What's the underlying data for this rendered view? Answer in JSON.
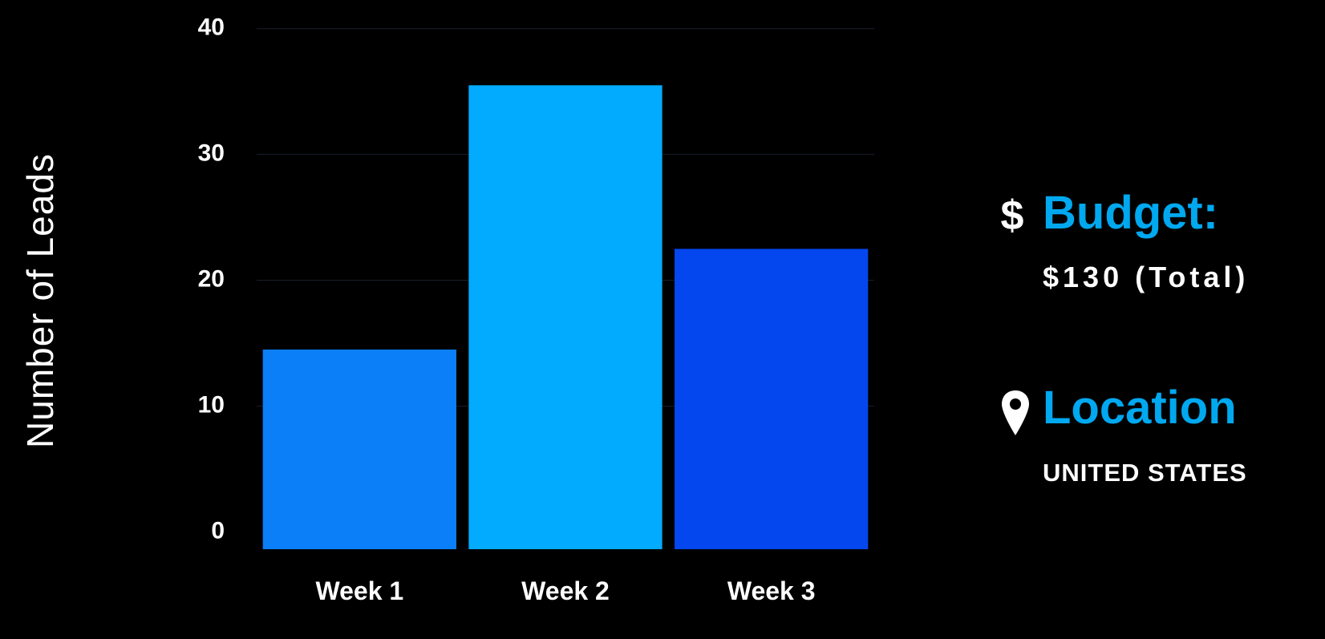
{
  "colors": {
    "background": "#000000",
    "accent": "#00a8f0",
    "text": "#ffffff",
    "grid": "#1a1f2e"
  },
  "chart_data": {
    "type": "bar",
    "categories": [
      "Week 1",
      "Week 2",
      "Week 3"
    ],
    "values": [
      14.5,
      35.5,
      22.5
    ],
    "bar_colors": [
      "#0a7ff7",
      "#02abfd",
      "#0447ee"
    ],
    "ylabel": "Number of Leads",
    "xlabel": "",
    "ylim": [
      -2,
      41
    ],
    "yticks": [
      0,
      10,
      20,
      30,
      40
    ],
    "ytick_labels": [
      "0",
      "10",
      "20",
      "30",
      "40"
    ],
    "grid": true
  },
  "info": {
    "budget": {
      "icon": "dollar-icon",
      "heading": "Budget:",
      "value": "$130 (Total)"
    },
    "location": {
      "icon": "map-pin-icon",
      "heading": "Location",
      "value": "UNITED STATES"
    }
  }
}
